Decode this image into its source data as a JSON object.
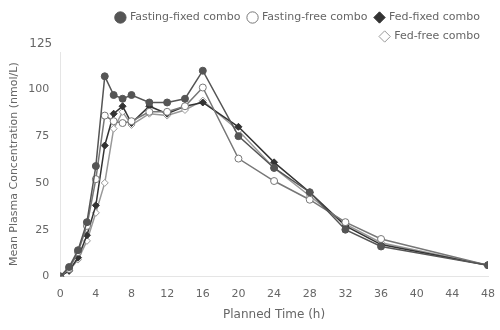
{
  "chart_data": {
    "type": "line",
    "x": [
      0,
      1,
      2,
      3,
      4,
      5,
      6,
      7,
      8,
      10,
      12,
      14,
      16,
      20,
      24,
      28,
      32,
      36,
      48
    ],
    "series": [
      {
        "name": "Fasting-fixed combo",
        "color": "#555555",
        "marker": "circle",
        "values": [
          0,
          5,
          14,
          29,
          59,
          107,
          97,
          95,
          97,
          93,
          93,
          95,
          110,
          75,
          58,
          45,
          25,
          16,
          6
        ]
      },
      {
        "name": "Fasting-free combo",
        "color": "#777777",
        "marker": "circle-open",
        "values": [
          0,
          4,
          13,
          27,
          52,
          86,
          83,
          82,
          83,
          88,
          88,
          91,
          101,
          63,
          51,
          41,
          29,
          20,
          6
        ]
      },
      {
        "name": "Fed-fixed combo",
        "color": "#333333",
        "marker": "diamond",
        "values": [
          0,
          3,
          10,
          22,
          38,
          70,
          87,
          91,
          82,
          91,
          87,
          91,
          93,
          80,
          61,
          45,
          27,
          17,
          6
        ]
      },
      {
        "name": "Fed-free combo",
        "color": "#999999",
        "marker": "diamond-open",
        "values": [
          0,
          3,
          9,
          19,
          34,
          50,
          79,
          88,
          81,
          87,
          86,
          89,
          94,
          78,
          58,
          43,
          28,
          18,
          6
        ]
      }
    ],
    "xlabel": "Planned Time (h)",
    "ylabel": "Mean Plasma Concentration (nmol/L)",
    "xlim": [
      0,
      48
    ],
    "ylim": [
      0,
      120
    ],
    "xticks": [
      0,
      4,
      8,
      12,
      16,
      20,
      24,
      28,
      32,
      36,
      40,
      44,
      48
    ],
    "yticks": [
      0,
      25,
      50,
      75,
      100
    ],
    "annotations": [
      "125"
    ],
    "grid": false,
    "legend": "upper right"
  }
}
